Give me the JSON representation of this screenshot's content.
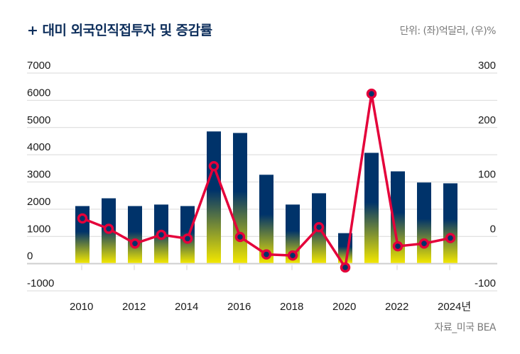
{
  "title": "+ 대미 외국인직접투자 및 증감률",
  "unit_label": "단위: (좌)억달러, (우)%",
  "source_label": "자료_미국 BEA",
  "colors": {
    "bar_top": "#00336a",
    "bar_bottom": "#f2e700",
    "line": "#e4003a",
    "marker_center": "#00336a",
    "grid": "#d9d9d9",
    "zero_line": "#cfcfcf"
  },
  "chart_data": {
    "type": "bar",
    "title": "+ 대미 외국인직접투자 및 증감률",
    "xlabel": "",
    "ylabel": "억달러",
    "y2label": "%",
    "categories": [
      "2010",
      "2011",
      "2012",
      "2013",
      "2014",
      "2015",
      "2016",
      "2017",
      "2018",
      "2019",
      "2020",
      "2021",
      "2022",
      "2023",
      "2024"
    ],
    "x_tick_labels": [
      "2010",
      "2012",
      "2014",
      "2016",
      "2018",
      "2020",
      "2022",
      "2024년"
    ],
    "y_ticks": [
      "7000",
      "6000",
      "5000",
      "4000",
      "3000",
      "2000",
      "1000",
      "0",
      "-1000"
    ],
    "y2_ticks": [
      "300",
      "200",
      "100",
      "0",
      "-100"
    ],
    "ylim": [
      -1000,
      7000
    ],
    "y2lim": [
      -100,
      300
    ],
    "grid": true,
    "series": [
      {
        "name": "대미 외국인직접투자 (억달러)",
        "type": "bar",
        "axis": "left",
        "values": [
          2115,
          2400,
          2115,
          2170,
          2115,
          4856,
          4800,
          3265,
          2170,
          2585,
          1120,
          4070,
          3390,
          2980,
          2950
        ]
      },
      {
        "name": "증감률 (%)",
        "type": "line",
        "axis": "right",
        "values": [
          33,
          14,
          -13,
          3,
          -4,
          129,
          -1,
          -33,
          -35,
          17,
          -57,
          262,
          -18,
          -13,
          -3
        ]
      }
    ]
  }
}
